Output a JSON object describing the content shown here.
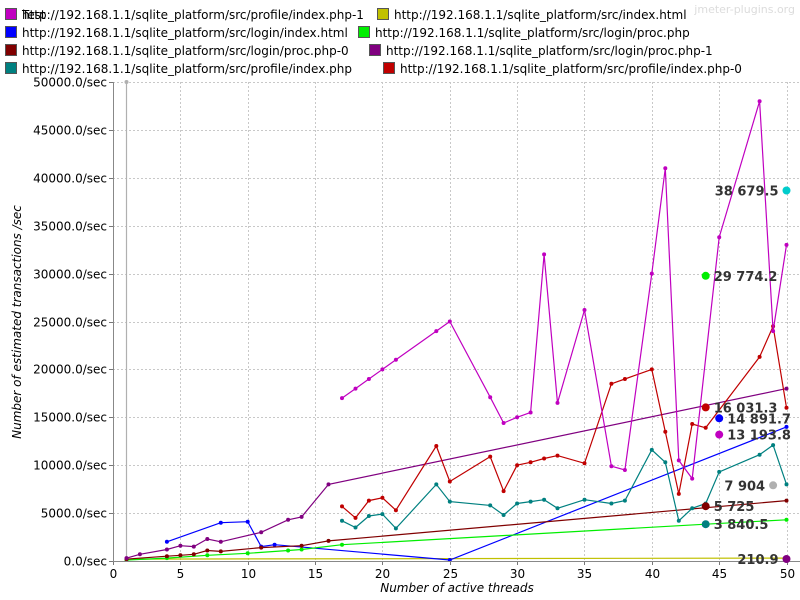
{
  "watermark": "jmeter-plugins.org",
  "chart_data": {
    "type": "line",
    "xlabel": "Number of active threads",
    "ylabel": "Number of estimated transactions /sec",
    "xlim": [
      0,
      51
    ],
    "ylim": [
      0,
      50000
    ],
    "x_ticks": [
      0,
      5,
      10,
      15,
      20,
      25,
      30,
      35,
      40,
      45,
      50
    ],
    "y_ticks": [
      0,
      5000,
      10000,
      15000,
      20000,
      25000,
      30000,
      35000,
      40000,
      45000,
      50000
    ],
    "y_tick_labels": [
      "0.0/sec",
      "5000.0/sec",
      "10000.0/sec",
      "15000.0/sec",
      "20000.0/sec",
      "25000.0/sec",
      "30000.0/sec",
      "35000.0/sec",
      "40000.0/sec",
      "45000.0/sec",
      "50000.0/sec"
    ],
    "grid": true,
    "legend_position": "top",
    "series": [
      {
        "name": "Test",
        "color": "#b0b0b0",
        "points": [
          [
            1,
            100
          ],
          [
            1,
            50000
          ]
        ],
        "end_point": [
          49,
          7904
        ],
        "end_label": "7 904"
      },
      {
        "name": "http://192.168.1.1/sqlite_platform/src/index.html",
        "color": "#c0c000",
        "points": [
          [
            1,
            200
          ],
          [
            50,
            300
          ]
        ]
      },
      {
        "name": "http://192.168.1.1/sqlite_platform/src/login/index.html",
        "color": "#0000ff",
        "points": [
          [
            4,
            2000
          ],
          [
            8,
            4000
          ],
          [
            10,
            4100
          ],
          [
            11,
            1500
          ],
          [
            12,
            1700
          ],
          [
            25,
            100
          ],
          [
            50,
            14000
          ]
        ],
        "end_point": [
          45,
          14891.7
        ],
        "end_label": "14 891.7"
      },
      {
        "name": "http://192.168.1.1/sqlite_platform/src/login/proc.php",
        "color": "#00ee00",
        "points": [
          [
            1,
            100
          ],
          [
            4,
            300
          ],
          [
            7,
            600
          ],
          [
            10,
            800
          ],
          [
            13,
            1100
          ],
          [
            14,
            1200
          ],
          [
            17,
            1700
          ],
          [
            44,
            3840
          ],
          [
            50,
            4300
          ]
        ],
        "end_point": [
          44,
          29774.2
        ],
        "end_label": "29 774.2"
      },
      {
        "name": "http://192.168.1.1/sqlite_platform/src/login/proc.php-0",
        "color": "#800000",
        "points": [
          [
            1,
            200
          ],
          [
            4,
            500
          ],
          [
            5,
            600
          ],
          [
            6,
            700
          ],
          [
            7,
            1100
          ],
          [
            8,
            1000
          ],
          [
            11,
            1400
          ],
          [
            14,
            1600
          ],
          [
            16,
            2100
          ],
          [
            50,
            6300
          ]
        ],
        "end_point": [
          44,
          5725
        ],
        "end_label": "5 725"
      },
      {
        "name": "http://192.168.1.1/sqlite_platform/src/login/proc.php-1",
        "color": "#800080",
        "points": [
          [
            1,
            300
          ],
          [
            2,
            700
          ],
          [
            4,
            1200
          ],
          [
            5,
            1600
          ],
          [
            6,
            1500
          ],
          [
            7,
            2300
          ],
          [
            8,
            2000
          ],
          [
            11,
            3000
          ],
          [
            13,
            4300
          ],
          [
            14,
            4600
          ],
          [
            16,
            8000
          ],
          [
            50,
            18000
          ]
        ],
        "end_point": [
          50,
          210.9
        ],
        "end_label": "210.9"
      },
      {
        "name": "http://192.168.1.1/sqlite_platform/src/profile/index.php",
        "color": "#008080",
        "points": [
          [
            17,
            4200
          ],
          [
            18,
            3500
          ],
          [
            19,
            4700
          ],
          [
            20,
            4900
          ],
          [
            21,
            3400
          ],
          [
            24,
            8000
          ],
          [
            25,
            6200
          ],
          [
            28,
            5800
          ],
          [
            29,
            4800
          ],
          [
            30,
            6000
          ],
          [
            31,
            6200
          ],
          [
            32,
            6400
          ],
          [
            33,
            5500
          ],
          [
            35,
            6400
          ],
          [
            37,
            6000
          ],
          [
            38,
            6300
          ],
          [
            40,
            11600
          ],
          [
            41,
            10300
          ],
          [
            42,
            4200
          ],
          [
            43,
            5500
          ],
          [
            44,
            6000
          ],
          [
            45,
            9300
          ],
          [
            48,
            11100
          ],
          [
            49,
            12100
          ],
          [
            50,
            8000
          ]
        ],
        "end_point": [
          44,
          3840.5
        ],
        "end_label": "3 840.5"
      },
      {
        "name": "http://192.168.1.1/sqlite_platform/src/profile/index.php-0",
        "color": "#c00000",
        "points": [
          [
            17,
            5700
          ],
          [
            18,
            4500
          ],
          [
            19,
            6300
          ],
          [
            20,
            6600
          ],
          [
            21,
            5300
          ],
          [
            24,
            12000
          ],
          [
            25,
            8300
          ],
          [
            28,
            10900
          ],
          [
            29,
            7300
          ],
          [
            30,
            10000
          ],
          [
            31,
            10300
          ],
          [
            32,
            10700
          ],
          [
            33,
            11000
          ],
          [
            35,
            10200
          ],
          [
            37,
            18500
          ],
          [
            38,
            19000
          ],
          [
            40,
            20000
          ],
          [
            41,
            13500
          ],
          [
            42,
            7000
          ],
          [
            43,
            14300
          ],
          [
            44,
            13900
          ],
          [
            48,
            21300
          ],
          [
            49,
            24500
          ],
          [
            50,
            16000
          ]
        ],
        "end_point": [
          44,
          16031.3
        ],
        "end_label": "16 031.3"
      },
      {
        "name": "http://192.168.1.1/sqlite_platform/src/profile/index.php-1",
        "color": "#c000c0",
        "points": [
          [
            17,
            17000
          ],
          [
            18,
            18000
          ],
          [
            19,
            19000
          ],
          [
            20,
            20000
          ],
          [
            21,
            21000
          ],
          [
            24,
            24000
          ],
          [
            25,
            25000
          ],
          [
            28,
            17100
          ],
          [
            29,
            14400
          ],
          [
            30,
            15000
          ],
          [
            31,
            15500
          ],
          [
            32,
            32000
          ],
          [
            33,
            16500
          ],
          [
            35,
            26200
          ],
          [
            37,
            9900
          ],
          [
            38,
            9500
          ],
          [
            40,
            30000
          ],
          [
            41,
            41000
          ],
          [
            42,
            10500
          ],
          [
            43,
            8600
          ],
          [
            45,
            33800
          ],
          [
            48,
            48000
          ],
          [
            49,
            24000
          ],
          [
            50,
            33000
          ]
        ],
        "end_point": [
          45,
          13193.8
        ],
        "end_label": "13 193.8"
      }
    ],
    "extra_labels": [
      {
        "x": 50,
        "y": 38679.5,
        "label": "38 679.5",
        "color": "#00cccc"
      }
    ]
  }
}
